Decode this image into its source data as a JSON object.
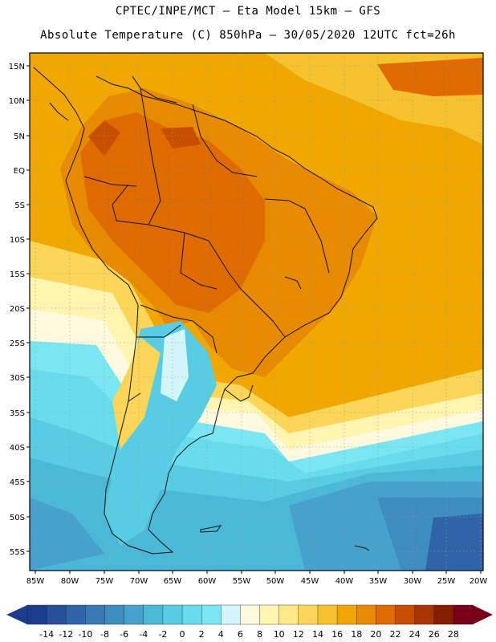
{
  "header": {
    "line1": "CPTEC/INPE/MCT –  Eta Model 15km – GFS",
    "line2": "Absolute Temperature (C) 850hPa – 30/05/2020 12UTC fct=26h"
  },
  "lat_labels": [
    "15N",
    "10N",
    "5N",
    "EQ",
    "5S",
    "10S",
    "15S",
    "20S",
    "25S",
    "30S",
    "35S",
    "40S",
    "45S",
    "50S",
    "55S"
  ],
  "lon_labels": [
    "85W",
    "80W",
    "75W",
    "70W",
    "65W",
    "60W",
    "55W",
    "50W",
    "45W",
    "40W",
    "35W",
    "30W",
    "25W",
    "20W"
  ],
  "colorbar": {
    "labels": [
      "-14",
      "-12",
      "-10",
      "-8",
      "-6",
      "-4",
      "-2",
      "0",
      "2",
      "4",
      "6",
      "8",
      "10",
      "12",
      "14",
      "16",
      "18",
      "20",
      "22",
      "24",
      "26",
      "28"
    ],
    "colors": [
      "#1e3c8c",
      "#27509c",
      "#2f64a8",
      "#3a78b4",
      "#3f8cc0",
      "#46a2cc",
      "#4cb8d8",
      "#58cce2",
      "#66dcec",
      "#7ae6f2",
      "#d2f6fa",
      "#fff9e0",
      "#fff5b0",
      "#ffe888",
      "#fcd658",
      "#f6c230",
      "#f0a800",
      "#e88a00",
      "#de6a00",
      "#c84e00",
      "#a83400",
      "#861c00",
      "#780018"
    ]
  },
  "colors": {
    "ocean_warm": "#f0a800",
    "ocean_cool": "#4cb8d8",
    "land_hot": "#de6a00",
    "land_warm": "#e88a00"
  }
}
